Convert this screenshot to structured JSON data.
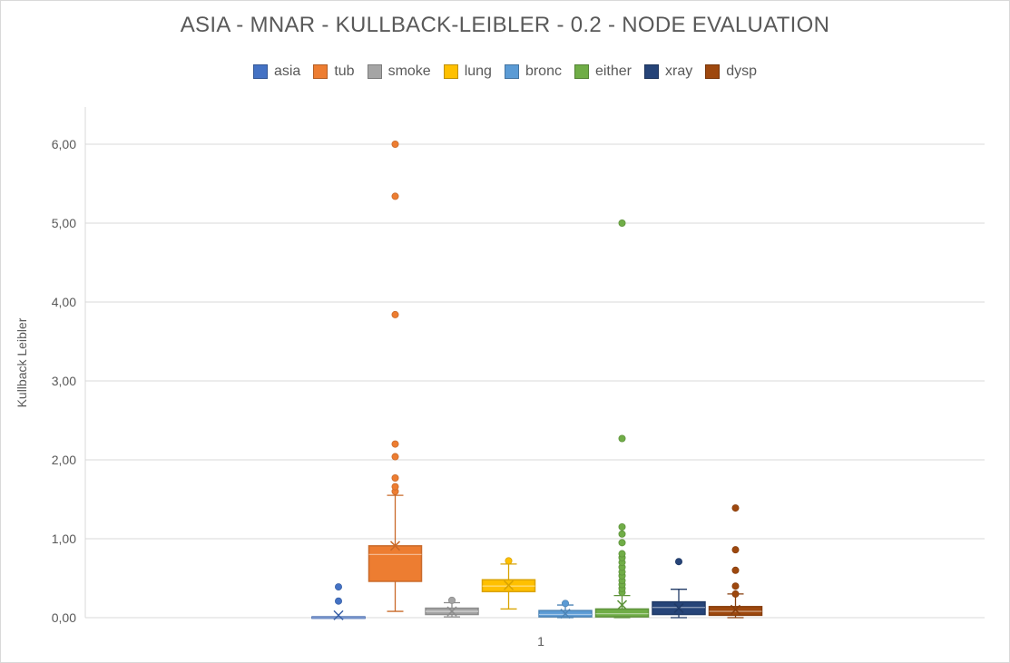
{
  "chart_data": {
    "type": "box",
    "title": "ASIA - MNAR - KULLBACK-LEIBLER - 0.2 - NODE EVALUATION",
    "xlabel": "",
    "ylabel": "Kullback Leibler",
    "categories": [
      "1"
    ],
    "ylim": [
      0,
      6.5
    ],
    "yticks": [
      "0,00",
      "1,00",
      "2,00",
      "3,00",
      "4,00",
      "5,00",
      "6,00"
    ],
    "grid": true,
    "legend_position": "top",
    "series": [
      {
        "name": "asia",
        "color": "#4472C4",
        "min": 0.0,
        "q1": 0.0,
        "median": 0.0,
        "q3": 0.01,
        "max": 0.01,
        "mean": 0.03,
        "outliers": [
          0.21,
          0.39
        ]
      },
      {
        "name": "tub",
        "color": "#ED7D31",
        "min": 0.08,
        "q1": 0.46,
        "median": 0.8,
        "q3": 0.91,
        "max": 1.55,
        "mean": 0.91,
        "outliers": [
          1.6,
          1.66,
          1.77,
          2.04,
          2.2,
          3.84,
          5.34,
          6.0
        ]
      },
      {
        "name": "smoke",
        "color": "#A5A5A5",
        "min": 0.01,
        "q1": 0.04,
        "median": 0.08,
        "q3": 0.12,
        "max": 0.19,
        "mean": 0.08,
        "outliers": [
          0.22
        ]
      },
      {
        "name": "lung",
        "color": "#FFC000",
        "min": 0.11,
        "q1": 0.33,
        "median": 0.4,
        "q3": 0.48,
        "max": 0.68,
        "mean": 0.41,
        "outliers": [
          0.72
        ]
      },
      {
        "name": "bronc",
        "color": "#5B9BD5",
        "min": 0.0,
        "q1": 0.01,
        "median": 0.04,
        "q3": 0.09,
        "max": 0.16,
        "mean": 0.05,
        "outliers": [
          0.18
        ]
      },
      {
        "name": "either",
        "color": "#70AD47",
        "min": 0.0,
        "q1": 0.01,
        "median": 0.05,
        "q3": 0.11,
        "max": 0.28,
        "mean": 0.16,
        "outliers": [
          0.32,
          0.37,
          0.42,
          0.47,
          0.53,
          0.58,
          0.64,
          0.7,
          0.76,
          0.81,
          0.95,
          1.06,
          1.15,
          2.27,
          5.0
        ]
      },
      {
        "name": "xray",
        "color": "#264478",
        "min": 0.0,
        "q1": 0.04,
        "median": 0.13,
        "q3": 0.2,
        "max": 0.36,
        "mean": 0.12,
        "outliers": [
          0.71
        ]
      },
      {
        "name": "dysp",
        "color": "#9E480E",
        "min": 0.0,
        "q1": 0.03,
        "median": 0.08,
        "q3": 0.14,
        "max": 0.3,
        "mean": 0.1,
        "outliers": [
          0.3,
          0.4,
          0.6,
          0.86,
          1.39
        ]
      }
    ]
  }
}
